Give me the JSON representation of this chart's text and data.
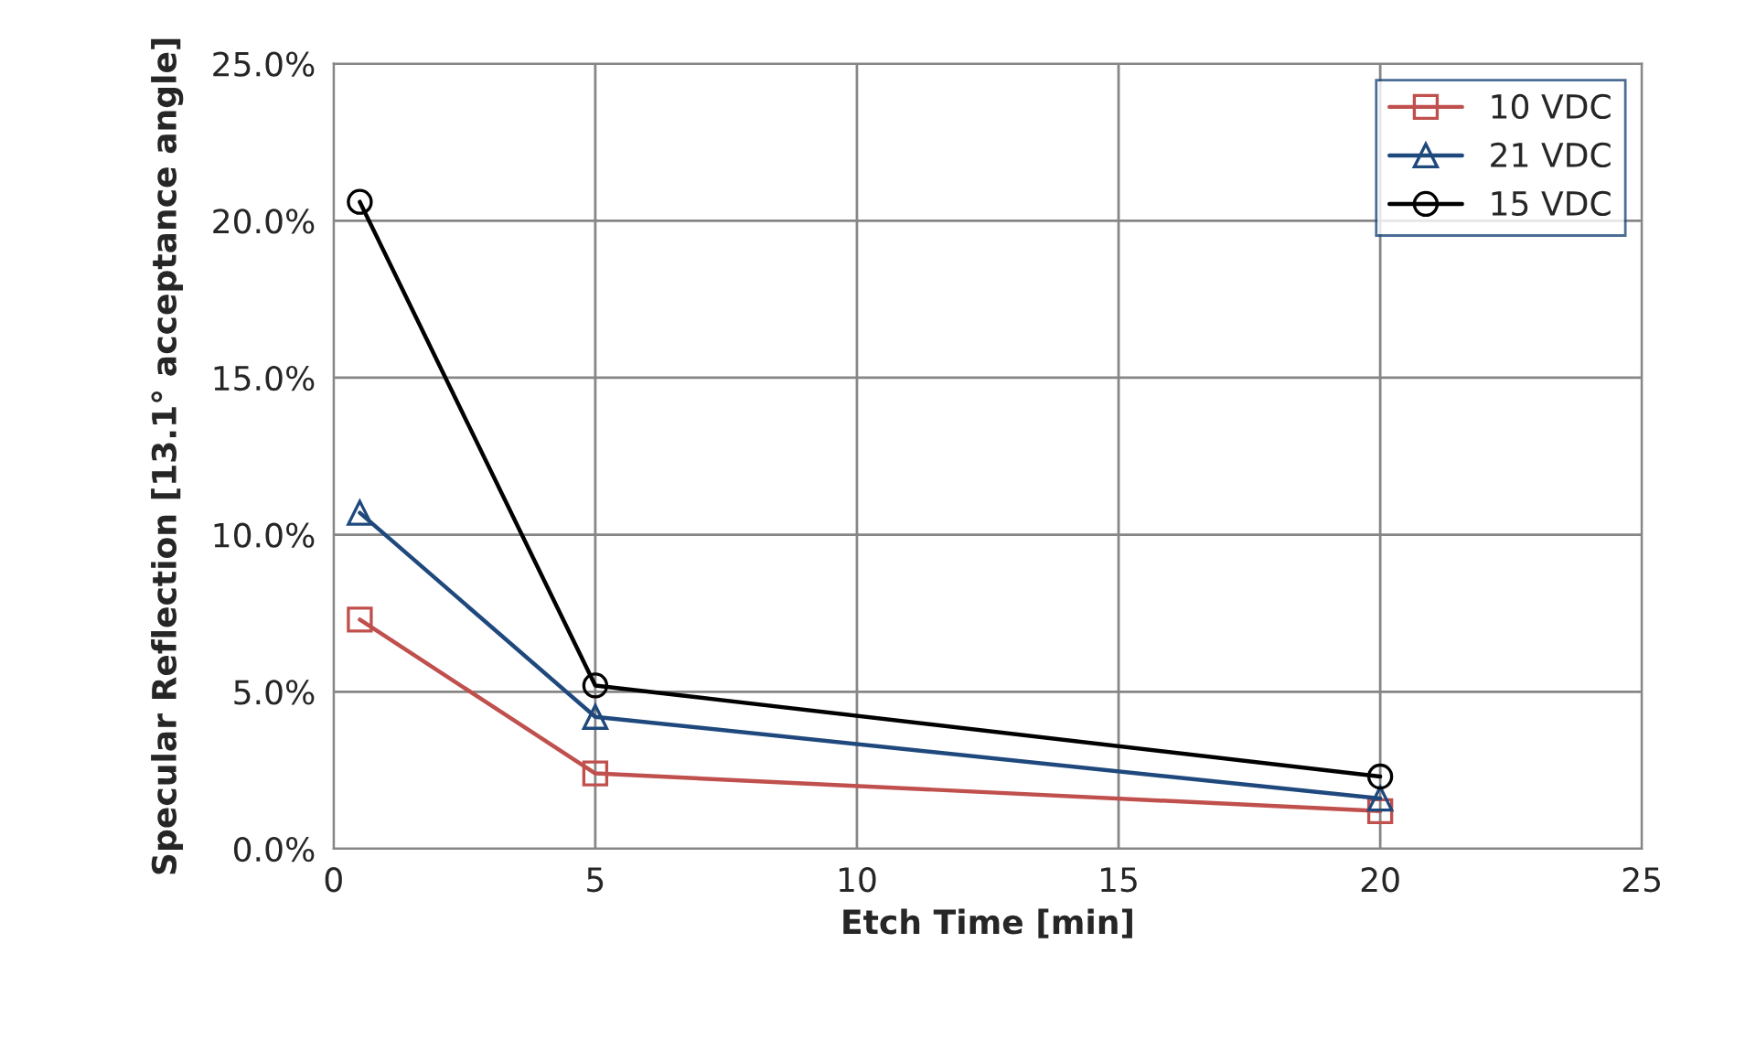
{
  "chart_data": {
    "type": "line",
    "xlabel": "Etch Time [min]",
    "ylabel": "Specular Reflection [13.1° acceptance angle]",
    "x": [
      0.5,
      5,
      20
    ],
    "series": [
      {
        "name": "10 VDC",
        "color": "#c0504d",
        "marker": "square",
        "values": [
          7.3,
          2.4,
          1.2
        ]
      },
      {
        "name": "21 VDC",
        "color": "#1f497d",
        "marker": "triangle",
        "values": [
          10.7,
          4.2,
          1.6
        ]
      },
      {
        "name": "15 VDC",
        "color": "#000000",
        "marker": "circle",
        "values": [
          20.6,
          5.2,
          2.3
        ]
      }
    ],
    "xlim": [
      0,
      25
    ],
    "xticks": [
      0,
      5,
      10,
      15,
      20,
      25
    ],
    "ylim": [
      0,
      25
    ],
    "yticks": [
      {
        "value": 0,
        "label": "0.0%"
      },
      {
        "value": 5,
        "label": "5.0%"
      },
      {
        "value": 10,
        "label": "10.0%"
      },
      {
        "value": 15,
        "label": "15.0%"
      },
      {
        "value": 20,
        "label": "20.0%"
      },
      {
        "value": 25,
        "label": "25.0%"
      }
    ],
    "grid": true,
    "legend": "top right",
    "line_style": "solid"
  }
}
